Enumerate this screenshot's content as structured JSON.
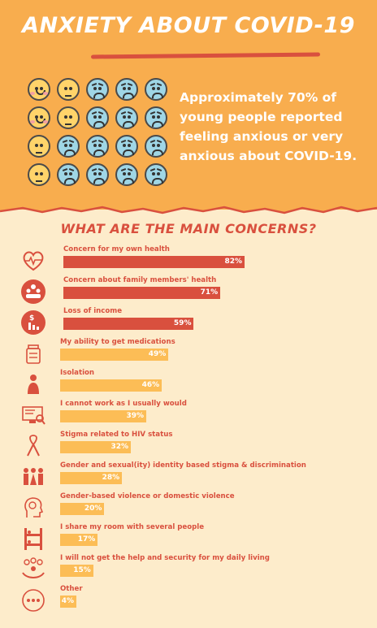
{
  "header": {
    "title": "ANXIETY ABOUT COVID-19",
    "stat_text": "Approximately 70% of young people reported feeling anxious or very anxious about COVID-19."
  },
  "emoji_grid": {
    "rows": [
      [
        "happy",
        "neutral",
        "anxious",
        "anxious",
        "anxious"
      ],
      [
        "happy",
        "neutral",
        "anxious",
        "anxious",
        "anxious"
      ],
      [
        "neutral",
        "anxious",
        "anxious",
        "anxious",
        "anxious"
      ],
      [
        "neutral",
        "anxious",
        "anxious",
        "anxious",
        "anxious"
      ]
    ]
  },
  "colors": {
    "accent_red": "#d9503e",
    "accent_orange": "#f8ad4e",
    "bar_light": "#fcbd56",
    "background": "#fdeccb"
  },
  "chart_data": {
    "type": "bar",
    "orientation": "horizontal",
    "title": "WHAT ARE THE MAIN CONCERNS?",
    "unit": "%",
    "xlim": [
      0,
      100
    ],
    "categories": [
      "Concern for my own health",
      "Concern about family members' health",
      "Loss of income",
      "My ability to get medications",
      "Isolation",
      "I cannot work as I usually would",
      "Stigma related to HIV status",
      "Gender and sexual(ity) identity based stigma & discrimination",
      "Gender-based violence or domestic violence",
      "I share my room with several people",
      "I will not get the help and security for my daily living",
      "Other"
    ],
    "values": [
      82,
      71,
      59,
      49,
      46,
      39,
      32,
      28,
      20,
      17,
      15,
      4
    ],
    "value_labels": [
      "82%",
      "71%",
      "59%",
      "49%",
      "46%",
      "39%",
      "32%",
      "28%",
      "20%",
      "17%",
      "15%",
      "4%"
    ],
    "icons": [
      "heart-pulse-icon",
      "family-icon",
      "money-chart-icon",
      "medicine-bottle-icon",
      "isolation-person-icon",
      "computer-search-icon",
      "awareness-ribbon-icon",
      "gender-people-icon",
      "violence-head-icon",
      "bunk-bed-icon",
      "help-hands-icon",
      "more-dots-icon"
    ]
  }
}
